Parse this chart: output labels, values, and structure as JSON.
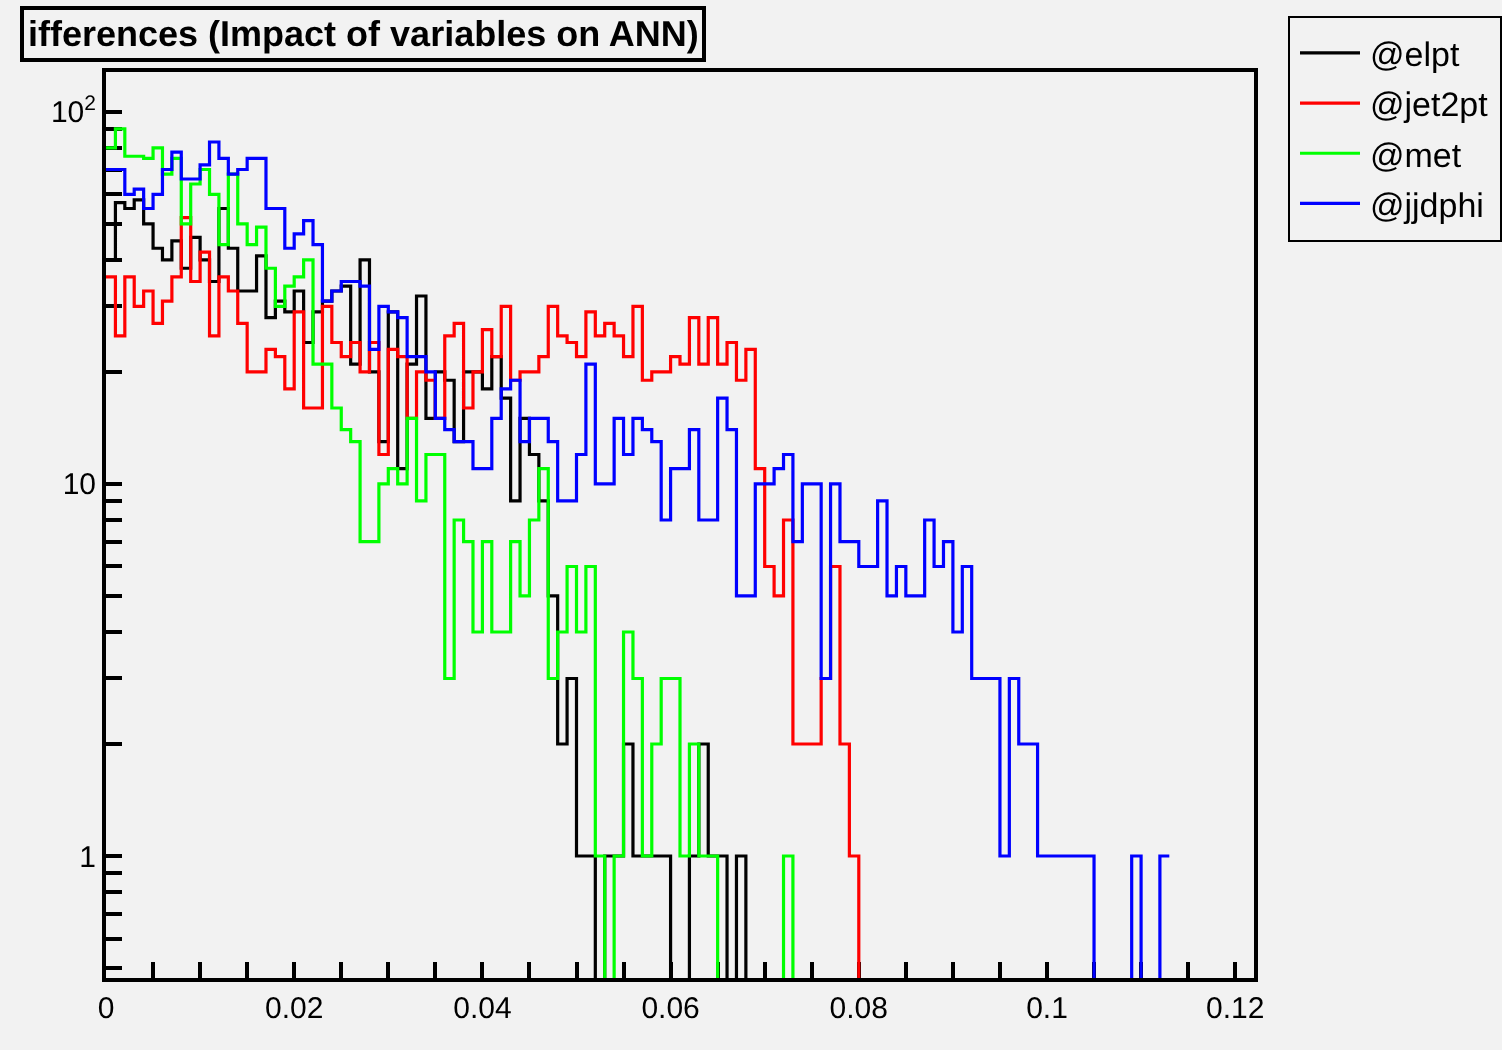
{
  "chart_data": {
    "type": "step",
    "title": "ifferences (Impact of variables on ANN)",
    "x": [
      0.0005,
      0.0015,
      0.0025,
      0.0035,
      0.0045,
      0.0055,
      0.0065,
      0.0075,
      0.0085,
      0.0095,
      0.0105,
      0.0115,
      0.0125,
      0.0135,
      0.0145,
      0.0155,
      0.0165,
      0.0175,
      0.0185,
      0.0195,
      0.0205,
      0.0215,
      0.0225,
      0.0235,
      0.0245,
      0.0255,
      0.0265,
      0.0275,
      0.0285,
      0.0295,
      0.0305,
      0.0315,
      0.0325,
      0.0335,
      0.0345,
      0.0355,
      0.0365,
      0.0375,
      0.0385,
      0.0395,
      0.0405,
      0.0415,
      0.0425,
      0.0435,
      0.0445,
      0.0455,
      0.0465,
      0.0475,
      0.0485,
      0.0495,
      0.0505,
      0.0515,
      0.0525,
      0.0535,
      0.0545,
      0.0555,
      0.0565,
      0.0575,
      0.0585,
      0.0595,
      0.0605,
      0.0615,
      0.0625,
      0.0635,
      0.0645,
      0.0655,
      0.0665,
      0.0675,
      0.0685,
      0.0695,
      0.0705,
      0.0715,
      0.0725,
      0.0735,
      0.0745,
      0.0755,
      0.0765,
      0.0775,
      0.0785,
      0.0795,
      0.0805,
      0.0815,
      0.0825,
      0.0835,
      0.0845,
      0.0855,
      0.0865,
      0.0875,
      0.0885,
      0.0895,
      0.0905,
      0.0915,
      0.0925,
      0.0935,
      0.0945,
      0.0955,
      0.0965,
      0.0975,
      0.0985,
      0.0995,
      0.1005,
      0.1015,
      0.1025,
      0.1035,
      0.1045,
      0.1055,
      0.1065,
      0.1075,
      0.1085,
      0.1095,
      0.1105,
      0.1115,
      0.1125
    ],
    "series": [
      {
        "name": "@elpt",
        "color": "#000000",
        "values": [
          40,
          57,
          55,
          58,
          50,
          43,
          40,
          45,
          38,
          46,
          40,
          35,
          55,
          43,
          33,
          33,
          41,
          28,
          31,
          29,
          33,
          24,
          29,
          31,
          33,
          34,
          21,
          40,
          20,
          13,
          29,
          11,
          21,
          32,
          15,
          20,
          19,
          13,
          20,
          20,
          18,
          22,
          17,
          9,
          15,
          12,
          9,
          5,
          2,
          3,
          1,
          1,
          null,
          1,
          1,
          2,
          1,
          1,
          1,
          1,
          null,
          null,
          1,
          2,
          1,
          1,
          null,
          1,
          null,
          null,
          null,
          null,
          null,
          null,
          null,
          null,
          null,
          null,
          null,
          null,
          null,
          null,
          null,
          null,
          null,
          null,
          null,
          null,
          null,
          null,
          null,
          null,
          null,
          null,
          null,
          null,
          null,
          null,
          null,
          null,
          null,
          null,
          null,
          null,
          null,
          null,
          null,
          null,
          null,
          null,
          null,
          null,
          null
        ]
      },
      {
        "name": "@jet2pt",
        "color": "#ff0000",
        "values": [
          36,
          25,
          36,
          30,
          33,
          27,
          31,
          36,
          52,
          35,
          42,
          25,
          36,
          33,
          27,
          20,
          20,
          23,
          22,
          18,
          29,
          16,
          16,
          30,
          24,
          22,
          24,
          20,
          24,
          12,
          23,
          22,
          15,
          20,
          19,
          15,
          25,
          27,
          16,
          20,
          26,
          22,
          30,
          19,
          20,
          20,
          22,
          30,
          25,
          24,
          22,
          29,
          25,
          27,
          25,
          22,
          30,
          19,
          20,
          20,
          22,
          21,
          28,
          21,
          28,
          21,
          24,
          19,
          23,
          11,
          6,
          5,
          8,
          2,
          2,
          2,
          3,
          6,
          2,
          1,
          null,
          null,
          null,
          null,
          null,
          null,
          null,
          null,
          null,
          null,
          null,
          null,
          null,
          null,
          null,
          null,
          null,
          null,
          null,
          null,
          null,
          null,
          null,
          null,
          null,
          null,
          null,
          null,
          null,
          null,
          null,
          null,
          null
        ]
      },
      {
        "name": "@met",
        "color": "#00ff00",
        "values": [
          80,
          90,
          76,
          76,
          75,
          80,
          68,
          75,
          50,
          64,
          70,
          60,
          44,
          68,
          50,
          44,
          49,
          38,
          30,
          34,
          36,
          40,
          21,
          21,
          16,
          14,
          13,
          7,
          7,
          10,
          11,
          10,
          15,
          9,
          12,
          12,
          3,
          8,
          7,
          4,
          7,
          4,
          4,
          7,
          5,
          8,
          11,
          3,
          4,
          6,
          4,
          6,
          1,
          null,
          1,
          4,
          3,
          1,
          2,
          3,
          3,
          1,
          2,
          1,
          1,
          null,
          null,
          null,
          null,
          null,
          null,
          null,
          1,
          null,
          null,
          null,
          null,
          null,
          null,
          null,
          null,
          null,
          null,
          null,
          null,
          null,
          null,
          null,
          null,
          null,
          null,
          null,
          null,
          null,
          null,
          null,
          null,
          null,
          null,
          null,
          null,
          null,
          null,
          null,
          null,
          null,
          null,
          null,
          null,
          null,
          null,
          null,
          null
        ]
      },
      {
        "name": "@jjdphi",
        "color": "#0000ff",
        "values": [
          70,
          70,
          60,
          62,
          55,
          60,
          70,
          78,
          66,
          66,
          72,
          83,
          75,
          68,
          70,
          75,
          75,
          55,
          55,
          43,
          47,
          51,
          44,
          31,
          33,
          35,
          35,
          34,
          23,
          30,
          29,
          28,
          22,
          22,
          20,
          15,
          14,
          13,
          13,
          11,
          11,
          15,
          18,
          19,
          13,
          15,
          15,
          13,
          9,
          9,
          12,
          21,
          10,
          10,
          15,
          12,
          15,
          14,
          13,
          8,
          11,
          11,
          14,
          8,
          8,
          17,
          14,
          5,
          5,
          10,
          10,
          11,
          12,
          7,
          10,
          10,
          3,
          10,
          7,
          7,
          6,
          6,
          9,
          5,
          6,
          5,
          5,
          8,
          6,
          7,
          4,
          6,
          3,
          3,
          3,
          1,
          3,
          2,
          2,
          1,
          1,
          1,
          1,
          1,
          1,
          null,
          null,
          null,
          null,
          1,
          null,
          null,
          1
        ]
      }
    ],
    "xlim": [
      0,
      0.122
    ],
    "xticks": [
      0,
      {
        "value": 0.005,
        "label": null
      },
      {
        "value": 0.01,
        "label": null
      },
      {
        "value": 0.015,
        "label": null
      },
      0.02,
      {
        "value": 0.025,
        "label": null
      },
      {
        "value": 0.03,
        "label": null
      },
      {
        "value": 0.035,
        "label": null
      },
      0.04,
      {
        "value": 0.045,
        "label": null
      },
      {
        "value": 0.05,
        "label": null
      },
      {
        "value": 0.055,
        "label": null
      },
      0.06,
      {
        "value": 0.065,
        "label": null
      },
      {
        "value": 0.07,
        "label": null
      },
      {
        "value": 0.075,
        "label": null
      },
      0.08,
      {
        "value": 0.085,
        "label": null
      },
      {
        "value": 0.09,
        "label": null
      },
      {
        "value": 0.095,
        "label": null
      },
      0.1,
      {
        "value": 0.105,
        "label": null
      },
      {
        "value": 0.11,
        "label": null
      },
      {
        "value": 0.115,
        "label": null
      },
      0.12
    ],
    "ylim": [
      0.47,
      128
    ],
    "yticks": [
      {
        "value": 0.5,
        "label": null
      },
      {
        "value": 0.6,
        "label": null
      },
      {
        "value": 0.7,
        "label": null
      },
      {
        "value": 0.8,
        "label": null
      },
      {
        "value": 0.9,
        "label": null
      },
      1,
      {
        "value": 2,
        "label": null
      },
      {
        "value": 3,
        "label": null
      },
      {
        "value": 4,
        "label": null
      },
      {
        "value": 5,
        "label": null
      },
      {
        "value": 6,
        "label": null
      },
      {
        "value": 7,
        "label": null
      },
      {
        "value": 8,
        "label": null
      },
      {
        "value": 9,
        "label": null
      },
      10,
      {
        "value": 20,
        "label": null
      },
      {
        "value": 30,
        "label": null
      },
      {
        "value": 40,
        "label": null
      },
      {
        "value": 50,
        "label": null
      },
      {
        "value": 60,
        "label": null
      },
      {
        "value": 70,
        "label": null
      },
      {
        "value": 80,
        "label": null
      },
      {
        "value": 90,
        "label": null
      },
      {
        "value": 100,
        "label": "10$^{2}$"
      }
    ],
    "log": true,
    "grid": false,
    "legend": "top right",
    "marker": "none",
    "line_style": "solid"
  }
}
